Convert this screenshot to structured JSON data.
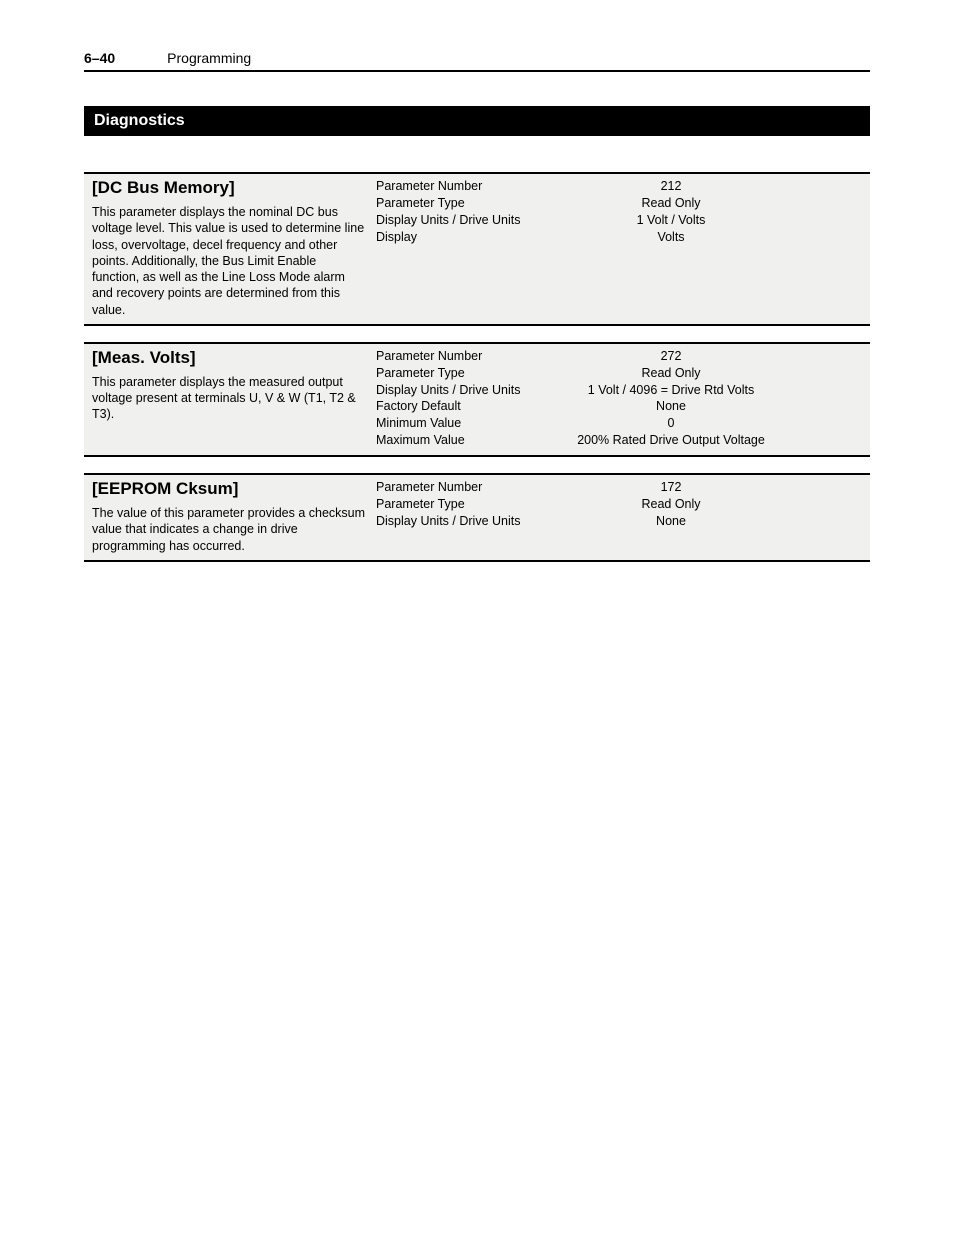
{
  "header": {
    "page_number": "6–40",
    "chapter": "Programming"
  },
  "section_title": "Diagnostics",
  "style": {
    "background_color": "#ffffff",
    "block_bg": "#f0f0ee",
    "text_color": "#000000",
    "section_bar_bg": "#000000",
    "section_bar_fg": "#ffffff",
    "rule_color": "#000000",
    "font_family": "Arial",
    "title_fontsize_pt": 13,
    "body_fontsize_pt": 9.5
  },
  "params": [
    {
      "title": "[DC Bus Memory]",
      "description": "This parameter displays the nominal DC bus voltage level. This value is used to determine line loss, overvoltage, decel frequency and other points. Additionally, the Bus Limit Enable function, as well as the Line Loss Mode alarm and recovery points are determined from this value.",
      "rows": [
        {
          "label": "Parameter Number",
          "value": "212"
        },
        {
          "label": "Parameter Type",
          "value": "Read Only"
        },
        {
          "label": "Display Units / Drive Units",
          "value": "1 Volt / Volts"
        },
        {
          "label": "Display",
          "value": "Volts"
        }
      ]
    },
    {
      "title": "[Meas. Volts]",
      "description": "This parameter displays the measured output voltage present at terminals U, V & W (T1, T2 & T3).",
      "rows": [
        {
          "label": "Parameter Number",
          "value": "272"
        },
        {
          "label": "Parameter Type",
          "value": "Read Only"
        },
        {
          "label": "Display Units / Drive Units",
          "value": "1 Volt / 4096 = Drive Rtd Volts"
        },
        {
          "label": "Factory Default",
          "value": "None"
        },
        {
          "label": "Minimum Value",
          "value": "0"
        },
        {
          "label": "Maximum Value",
          "value": "200% Rated Drive Output Voltage"
        }
      ]
    },
    {
      "title": "[EEPROM Cksum]",
      "description": "The value of this parameter provides a checksum value that indicates a change in drive programming has occurred.",
      "rows": [
        {
          "label": "Parameter Number",
          "value": "172"
        },
        {
          "label": "Parameter Type",
          "value": "Read Only"
        },
        {
          "label": "Display Units / Drive Units",
          "value": "None"
        }
      ]
    }
  ]
}
